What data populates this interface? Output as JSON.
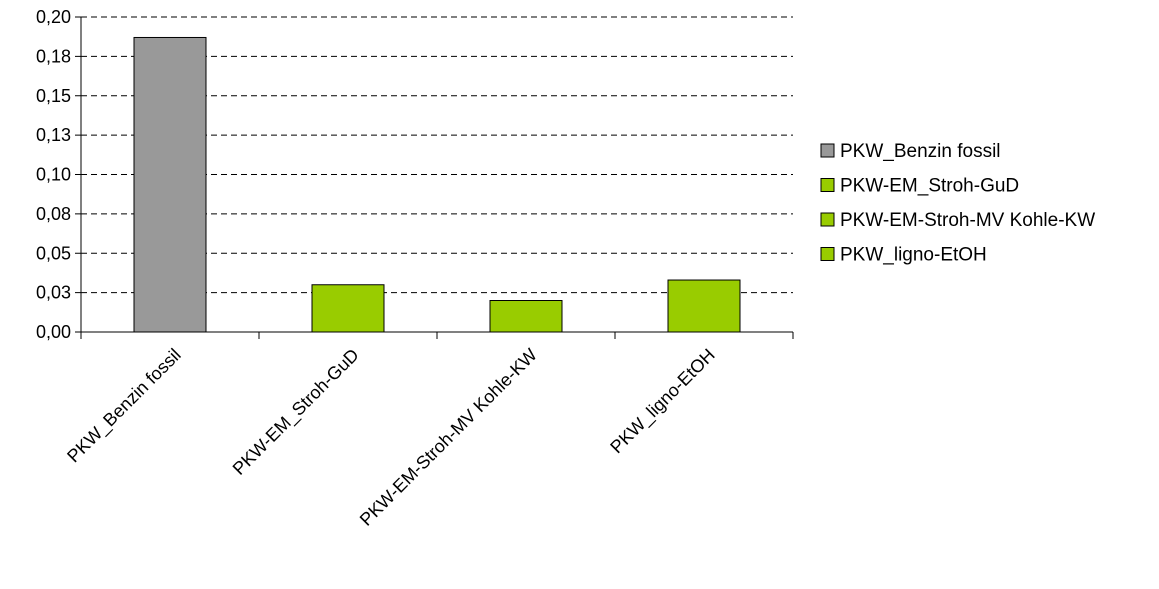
{
  "chart_data": {
    "type": "bar",
    "title": "",
    "xlabel": "",
    "ylabel": "",
    "categories": [
      "PKW_Benzin fossil",
      "PKW-EM_Stroh-GuD",
      "PKW-EM-Stroh-MV Kohle-KW",
      "PKW_ligno-EtOH"
    ],
    "values": [
      0.187,
      0.03,
      0.02,
      0.033
    ],
    "colors": [
      "#999999",
      "#99CC00",
      "#99CC00",
      "#99CC00"
    ],
    "yticks": [
      "0,00",
      "0,03",
      "0,05",
      "0,08",
      "0,10",
      "0,13",
      "0,15",
      "0,18",
      "0,20"
    ],
    "ylim": [
      0,
      0.2
    ],
    "grid": true,
    "legend": {
      "placement": "right",
      "entries": [
        {
          "label": "PKW_Benzin fossil",
          "color": "#999999"
        },
        {
          "label": "PKW-EM_Stroh-GuD",
          "color": "#99CC00"
        },
        {
          "label": "PKW-EM-Stroh-MV Kohle-KW",
          "color": "#99CC00"
        },
        {
          "label": "PKW_ligno-EtOH",
          "color": "#99CC00"
        }
      ]
    }
  }
}
